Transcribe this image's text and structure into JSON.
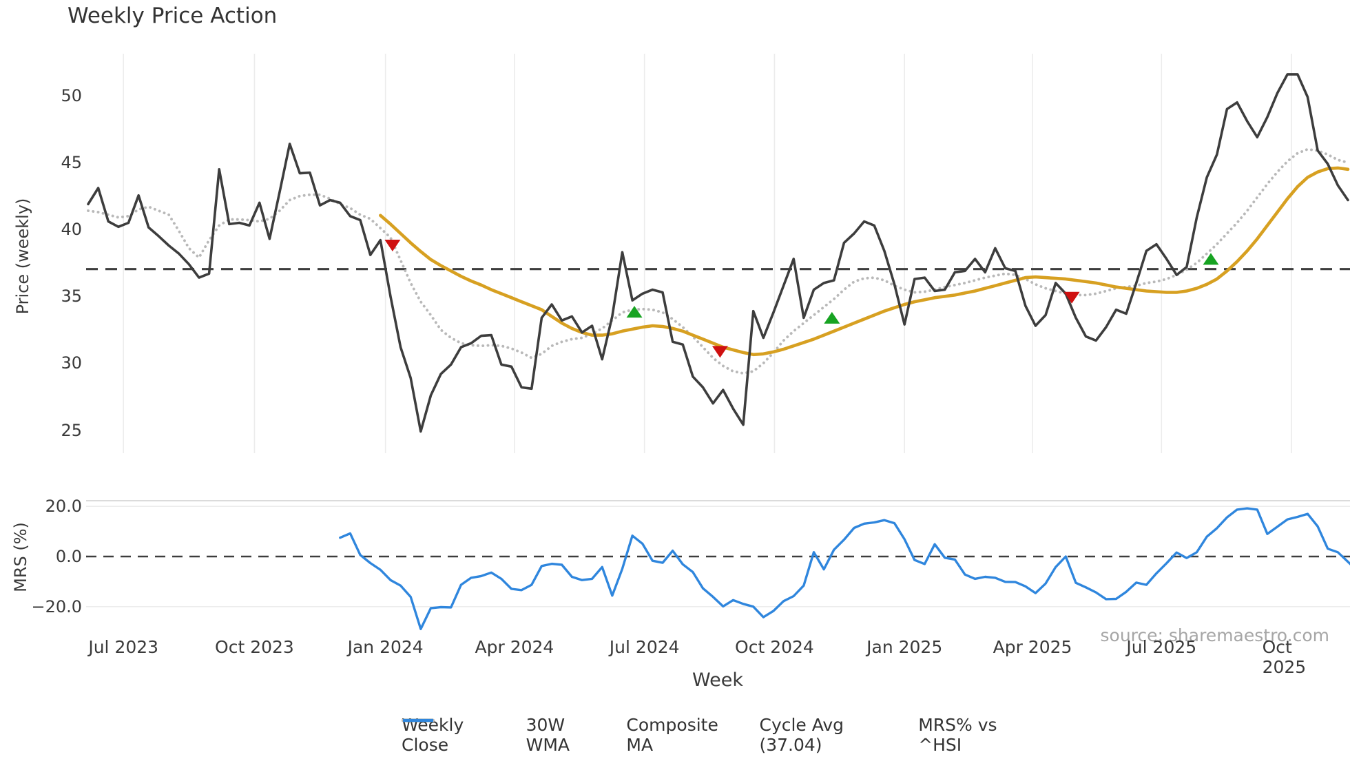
{
  "title": "Weekly Price Action",
  "source_note": "source: sharemaestro.com",
  "x_axis": {
    "label": "Week",
    "ticks": [
      {
        "week": 3.5,
        "label": "Jul 2023"
      },
      {
        "week": 16.5,
        "label": "Oct 2023"
      },
      {
        "week": 29.5,
        "label": "Jan 2024"
      },
      {
        "week": 42.3,
        "label": "Apr 2024"
      },
      {
        "week": 55.2,
        "label": "Jul 2024"
      },
      {
        "week": 68.1,
        "label": "Oct 2024"
      },
      {
        "week": 81.0,
        "label": "Jan 2025"
      },
      {
        "week": 93.7,
        "label": "Apr 2025"
      },
      {
        "week": 106.5,
        "label": "Jul 2025"
      },
      {
        "week": 119.4,
        "label": "Oct 2025"
      }
    ]
  },
  "price_panel": {
    "ylabel": "Price (weekly)",
    "yticks": [
      {
        "value": 50,
        "label": "50"
      },
      {
        "value": 45,
        "label": "45"
      },
      {
        "value": 40,
        "label": "40"
      },
      {
        "value": 35,
        "label": "35"
      },
      {
        "value": 30,
        "label": "30"
      },
      {
        "value": 25,
        "label": "25"
      }
    ]
  },
  "mrs_panel": {
    "ylabel": "MRS (%)",
    "yticks": [
      {
        "value": 20,
        "label": "20.0"
      },
      {
        "value": 0,
        "label": "0.0"
      },
      {
        "value": -20,
        "label": "−20.0"
      }
    ]
  },
  "legend": [
    {
      "label": "Weekly Close",
      "style": "solid",
      "color": "#3d3d3d"
    },
    {
      "label": "30W WMA",
      "style": "solid",
      "color": "#d7a021"
    },
    {
      "label": "Composite MA",
      "style": "dotted",
      "color": "#b9b9b9"
    },
    {
      "label": "Cycle Avg (37.04)",
      "style": "dashed",
      "color": "#3d3d3d"
    },
    {
      "label": "MRS% vs ^HSI",
      "style": "solid",
      "color": "#2f86dd"
    }
  ],
  "chart_data": [
    {
      "type": "line",
      "panel": "price",
      "ylabel": "Price (weekly)",
      "ylim": [
        24,
        52.5
      ],
      "grid": "vertical-only",
      "series": [
        {
          "name": "Weekly Close",
          "color": "#3d3d3d",
          "style": "solid",
          "start_week": 0,
          "values": [
            41.9,
            43.1,
            40.6,
            40.2,
            40.5,
            42.55,
            40.15,
            39.5,
            38.8,
            38.2,
            37.4,
            36.4,
            36.7,
            44.5,
            40.4,
            40.5,
            40.3,
            42.0,
            39.3,
            42.8,
            46.4,
            44.2,
            44.25,
            41.8,
            42.2,
            42.0,
            41.0,
            40.7,
            38.1,
            39.2,
            35.0,
            31.2,
            28.9,
            24.9,
            27.6,
            29.2,
            29.9,
            31.2,
            31.5,
            32.05,
            32.1,
            29.9,
            29.75,
            28.2,
            28.1,
            33.4,
            34.4,
            33.2,
            33.5,
            32.3,
            32.8,
            30.3,
            33.5,
            38.3,
            34.7,
            35.2,
            35.5,
            35.3,
            31.6,
            31.4,
            29.0,
            28.2,
            27.0,
            28.0,
            26.6,
            25.4,
            33.9,
            31.9,
            33.8,
            35.8,
            37.8,
            33.4,
            35.5,
            36.0,
            36.2,
            39.0,
            39.7,
            40.6,
            40.3,
            38.4,
            35.9,
            32.9,
            36.3,
            36.4,
            35.4,
            35.5,
            36.8,
            36.9,
            37.8,
            36.8,
            38.6,
            37.1,
            36.9,
            34.3,
            32.8,
            33.6,
            36.0,
            35.2,
            33.4,
            32.0,
            31.7,
            32.7,
            34.0,
            33.7,
            36.0,
            38.4,
            38.9,
            37.8,
            36.6,
            37.2,
            40.9,
            43.9,
            45.6,
            49.0,
            49.5,
            48.1,
            46.9,
            48.4,
            50.2,
            51.6,
            51.6,
            49.9,
            45.9,
            44.9,
            43.3,
            42.2
          ]
        },
        {
          "name": "30W WMA",
          "color": "#d7a021",
          "style": "solid",
          "start_week": 29,
          "values": [
            41.05,
            40.4,
            39.7,
            39.0,
            38.35,
            37.75,
            37.3,
            36.9,
            36.5,
            36.15,
            35.85,
            35.5,
            35.2,
            34.9,
            34.6,
            34.3,
            34.0,
            33.5,
            33.0,
            32.6,
            32.3,
            32.1,
            32.1,
            32.2,
            32.4,
            32.55,
            32.7,
            32.8,
            32.75,
            32.6,
            32.4,
            32.1,
            31.8,
            31.5,
            31.2,
            31.0,
            30.8,
            30.65,
            30.7,
            30.85,
            31.05,
            31.3,
            31.55,
            31.8,
            32.1,
            32.4,
            32.7,
            33.0,
            33.3,
            33.6,
            33.9,
            34.15,
            34.4,
            34.6,
            34.75,
            34.9,
            35.0,
            35.1,
            35.25,
            35.4,
            35.6,
            35.8,
            36.0,
            36.2,
            36.4,
            36.45,
            36.4,
            36.35,
            36.3,
            36.2,
            36.1,
            36.0,
            35.85,
            35.7,
            35.6,
            35.5,
            35.4,
            35.35,
            35.3,
            35.3,
            35.4,
            35.6,
            35.9,
            36.3,
            36.9,
            37.6,
            38.4,
            39.3,
            40.3,
            41.3,
            42.3,
            43.2,
            43.9,
            44.3,
            44.55,
            44.6,
            44.5
          ]
        },
        {
          "name": "Composite MA",
          "color": "#b9b9b9",
          "style": "dotted",
          "start_week": 0,
          "values": [
            41.4,
            41.3,
            41.1,
            40.9,
            41.0,
            41.5,
            41.7,
            41.4,
            41.1,
            39.9,
            38.6,
            37.9,
            39.2,
            40.3,
            40.75,
            40.75,
            40.7,
            40.6,
            40.8,
            41.4,
            42.2,
            42.5,
            42.6,
            42.6,
            42.3,
            41.9,
            41.6,
            41.1,
            40.8,
            40.1,
            39.4,
            37.7,
            36.0,
            34.6,
            33.6,
            32.5,
            31.9,
            31.5,
            31.35,
            31.3,
            31.35,
            31.3,
            31.1,
            30.8,
            30.4,
            30.7,
            31.3,
            31.6,
            31.8,
            31.9,
            32.2,
            32.6,
            33.2,
            33.8,
            34.0,
            34.05,
            34.0,
            33.8,
            33.3,
            32.7,
            32.0,
            31.2,
            30.4,
            29.8,
            29.4,
            29.25,
            29.4,
            30.0,
            30.8,
            31.7,
            32.4,
            33.0,
            33.6,
            34.2,
            34.8,
            35.5,
            36.1,
            36.35,
            36.4,
            36.2,
            35.8,
            35.5,
            35.3,
            35.35,
            35.5,
            35.7,
            35.85,
            36.0,
            36.2,
            36.4,
            36.55,
            36.7,
            36.6,
            36.3,
            35.9,
            35.6,
            35.4,
            35.2,
            35.1,
            35.1,
            35.2,
            35.4,
            35.6,
            35.7,
            35.8,
            36.0,
            36.1,
            36.3,
            36.6,
            37.0,
            37.5,
            38.2,
            38.9,
            39.7,
            40.5,
            41.4,
            42.4,
            43.4,
            44.3,
            45.1,
            45.7,
            46.0,
            45.9,
            45.6,
            45.2,
            45.0
          ]
        },
        {
          "name": "Cycle Avg",
          "color": "#3d3d3d",
          "style": "dashed",
          "value": 37.04
        }
      ],
      "markers": {
        "sell": {
          "shape": "triangle-down",
          "color": "#cf1010",
          "points": [
            {
              "week": 30.2,
              "value": 38.8
            },
            {
              "week": 62.7,
              "value": 30.85
            },
            {
              "week": 97.6,
              "value": 34.9
            }
          ]
        },
        "buy": {
          "shape": "triangle-up",
          "color": "#17a322",
          "points": [
            {
              "week": 54.2,
              "value": 33.85
            },
            {
              "week": 73.8,
              "value": 33.4
            },
            {
              "week": 111.4,
              "value": 37.8
            }
          ]
        }
      }
    },
    {
      "type": "line",
      "panel": "mrs",
      "ylabel": "MRS (%)",
      "ylim": [
        -30,
        22
      ],
      "series": [
        {
          "name": "MRS% vs ^HSI",
          "color": "#2f86dd",
          "style": "solid",
          "start_week": 25,
          "values": [
            7.5,
            9.2,
            0.6,
            -2.6,
            -5.3,
            -9.4,
            -11.6,
            -16.1,
            -28.9,
            -20.6,
            -20.2,
            -20.3,
            -11.3,
            -8.5,
            -7.8,
            -6.4,
            -8.9,
            -12.9,
            -13.4,
            -11.3,
            -3.8,
            -2.9,
            -3.3,
            -8.1,
            -9.4,
            -8.9,
            -4.2,
            -15.6,
            -4.9,
            8.3,
            5.1,
            -1.7,
            -2.5,
            2.3,
            -3.1,
            -6.2,
            -12.7,
            -16.1,
            -19.9,
            -17.4,
            -18.9,
            -20.0,
            -24.2,
            -21.7,
            -17.8,
            -15.8,
            -11.6,
            1.7,
            -5.1,
            2.7,
            6.7,
            11.4,
            13.1,
            13.6,
            14.5,
            13.3,
            6.9,
            -1.4,
            -3.0,
            4.9,
            -0.5,
            -1.2,
            -7.2,
            -8.9,
            -8.1,
            -8.5,
            -10.1,
            -10.2,
            -11.9,
            -14.6,
            -10.8,
            -4.2,
            0.0,
            -10.5,
            -12.3,
            -14.3,
            -17.0,
            -16.9,
            -14.1,
            -10.4,
            -11.3,
            -6.7,
            -2.7,
            1.6,
            -0.6,
            1.7,
            7.9,
            11.3,
            15.6,
            18.7,
            19.2,
            18.7,
            9.0,
            11.9,
            14.8,
            15.8,
            17.0,
            12.0,
            3.1,
            1.7,
            -2.1,
            -6.0
          ]
        },
        {
          "name": "Zero line",
          "color": "#3d3d3d",
          "style": "dashed",
          "value": 0.0
        }
      ]
    }
  ]
}
